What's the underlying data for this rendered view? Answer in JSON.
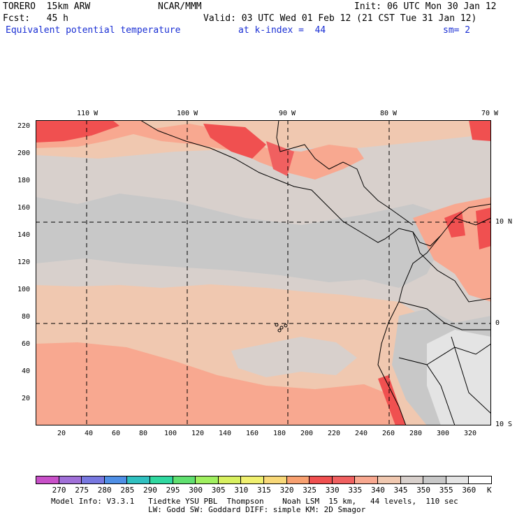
{
  "header": {
    "model": "TORERO  15km ARW",
    "center": "NCAR/MMM",
    "init": "Init: 06 UTC Mon 30 Jan 12",
    "fcst": "Fcst:   45 h",
    "valid": "Valid: 03 UTC Wed 01 Feb 12 (21 CST Tue 31 Jan 12)",
    "field": "Equivalent potential temperature",
    "level": "at k-index =  44",
    "smooth": "sm= 2"
  },
  "map": {
    "lon_labels": [
      "110 W",
      "100 W",
      "90 W",
      "80 W",
      "70 W"
    ],
    "lat_labels": [
      "10 N",
      "0",
      "10 S"
    ],
    "x_ticks": [
      "20",
      "40",
      "60",
      "80",
      "100",
      "120",
      "140",
      "160",
      "180",
      "200",
      "220",
      "240",
      "260",
      "280",
      "300",
      "320"
    ],
    "y_ticks": [
      "220",
      "200",
      "180",
      "160",
      "140",
      "120",
      "100",
      "80",
      "60",
      "40",
      "20"
    ]
  },
  "colorbar": {
    "labels": [
      "270",
      "275",
      "280",
      "285",
      "290",
      "295",
      "300",
      "305",
      "310",
      "315",
      "320",
      "325",
      "330",
      "335",
      "340",
      "345",
      "350",
      "355",
      "360"
    ],
    "unit": "K",
    "colors": [
      "#c850c8",
      "#a070d8",
      "#7878e0",
      "#4f8fe6",
      "#30c0c0",
      "#30d8a0",
      "#60e070",
      "#a0f060",
      "#d8f060",
      "#f0f070",
      "#f8d878",
      "#f8a070",
      "#f05050",
      "#f06060",
      "#f8a890",
      "#f0c8b0",
      "#d8d0cc",
      "#c8c8c8",
      "#e4e4e4",
      "#ffffff"
    ]
  },
  "footer": {
    "line1": "Model Info: V3.3.1   Tiedtke YSU PBL  Thompson    Noah LSM  15 km,   44 levels,  110 sec",
    "line2": "LW: Godd SW: Goddard DIFF: simple KM: 2D Smagor"
  }
}
